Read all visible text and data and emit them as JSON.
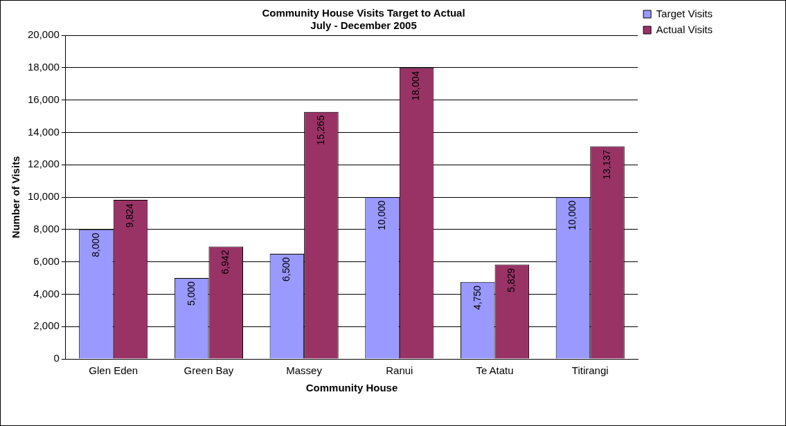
{
  "chart_data": {
    "type": "bar",
    "title": "Community House Visits Target to Actual",
    "subtitle": "July - December 2005",
    "xlabel": "Community House",
    "ylabel": "Number of Visits",
    "categories": [
      "Glen Eden",
      "Green Bay",
      "Massey",
      "Ranui",
      "Te Atatu",
      "Titirangi"
    ],
    "series": [
      {
        "name": "Target Visits",
        "color": "#9999ff",
        "values": [
          8000,
          5000,
          6500,
          10000,
          4750,
          10000
        ],
        "value_labels": [
          "8,000",
          "5,000",
          "6,500",
          "10,000",
          "4,750",
          "10,000"
        ]
      },
      {
        "name": "Actual Visits",
        "color": "#993366",
        "values": [
          9824,
          6942,
          15265,
          18004,
          5829,
          13137
        ],
        "value_labels": [
          "9,824",
          "6,942",
          "15,265",
          "18,004",
          "5,829",
          "13,137"
        ]
      }
    ],
    "ylim": [
      0,
      20000
    ],
    "yticks": [
      0,
      {
        "value": 2000,
        "label": "2,000"
      },
      {
        "value": 4000,
        "label": "4,000"
      },
      {
        "value": 6000,
        "label": "6,000"
      },
      {
        "value": 8000,
        "label": "8,000"
      },
      {
        "value": 10000,
        "label": "10,000"
      },
      {
        "value": 12000,
        "label": "12,000"
      },
      {
        "value": 14000,
        "label": "14,000"
      },
      {
        "value": 16000,
        "label": "16,000"
      },
      {
        "value": 18000,
        "label": "18,000"
      },
      {
        "value": 20000,
        "label": "20,000"
      }
    ],
    "grid": "y",
    "legend": "top right"
  }
}
